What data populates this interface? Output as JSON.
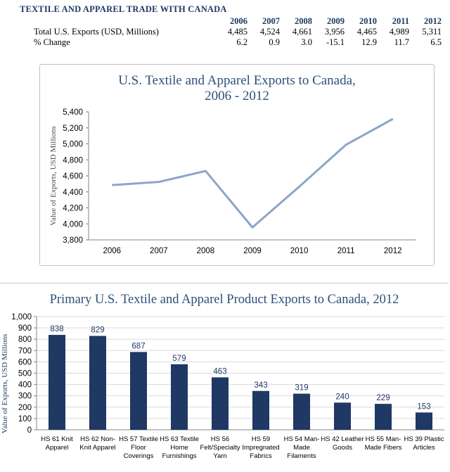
{
  "header": {
    "title": "TEXTILE AND APPAREL TRADE WITH CANADA"
  },
  "stats_table": {
    "years": [
      "2006",
      "2007",
      "2008",
      "2009",
      "2010",
      "2011",
      "2012"
    ],
    "rows": [
      {
        "label": "Total U.S. Exports (USD, Millions)",
        "values": [
          "4,485",
          "4,524",
          "4,661",
          "3,956",
          "4,465",
          "4,989",
          "5,311"
        ]
      },
      {
        "label": "% Change",
        "values": [
          "6.2",
          "0.9",
          "3.0",
          "-15.1",
          "12.9",
          "11.7",
          "6.5"
        ]
      }
    ]
  },
  "colors": {
    "line": "#8ea5c8",
    "bar": "#1f3864",
    "title": "#2e4f7a",
    "grid": "#d9d9d9"
  },
  "chart_data": [
    {
      "type": "line",
      "title": "U.S. Textile and Apparel Exports to Canada,",
      "subtitle": "2006 - 2012",
      "xlabel": "",
      "ylabel": "Value of Exports, USD Millions",
      "categories": [
        "2006",
        "2007",
        "2008",
        "2009",
        "2010",
        "2011",
        "2012"
      ],
      "values": [
        4485,
        4524,
        4661,
        3956,
        4465,
        4989,
        5311
      ],
      "ylim": [
        3800,
        5400
      ],
      "yticks": [
        "3,800",
        "4,000",
        "4,200",
        "4,400",
        "4,600",
        "4,800",
        "5,000",
        "5,200",
        "5,400"
      ],
      "grid": false
    },
    {
      "type": "bar",
      "title": "Primary U.S. Textile and Apparel Product Exports to Canada, 2012",
      "xlabel": "",
      "ylabel": "Value of Exports, USD Millions",
      "categories": [
        [
          "HS 61 Knit",
          "Apparel"
        ],
        [
          "HS 62 Non-",
          "Knit Apparel"
        ],
        [
          "HS 57 Textile",
          "Floor",
          "Coverings"
        ],
        [
          "HS 63 Textile",
          "Home",
          "Furnishings"
        ],
        [
          "HS 56",
          "Felt/Specialty",
          "Yarn"
        ],
        [
          "HS 59",
          "Impregnated",
          "Fabrics"
        ],
        [
          "HS 54 Man-",
          "Made",
          "Filaments"
        ],
        [
          "HS 42 Leather",
          "Goods"
        ],
        [
          "HS 55 Man-",
          "Made Fibers"
        ],
        [
          "HS 39 Plastic",
          "Articles"
        ]
      ],
      "values": [
        838,
        829,
        687,
        579,
        463,
        343,
        319,
        240,
        229,
        153
      ],
      "data_labels": [
        "838",
        "829",
        "687",
        "579",
        "463",
        "343",
        "319",
        "240",
        "229",
        "153"
      ],
      "ylim": [
        0,
        1000
      ],
      "yticks": [
        "0",
        "100",
        "200",
        "300",
        "400",
        "500",
        "600",
        "700",
        "800",
        "900",
        "1,000"
      ],
      "grid": true
    }
  ]
}
